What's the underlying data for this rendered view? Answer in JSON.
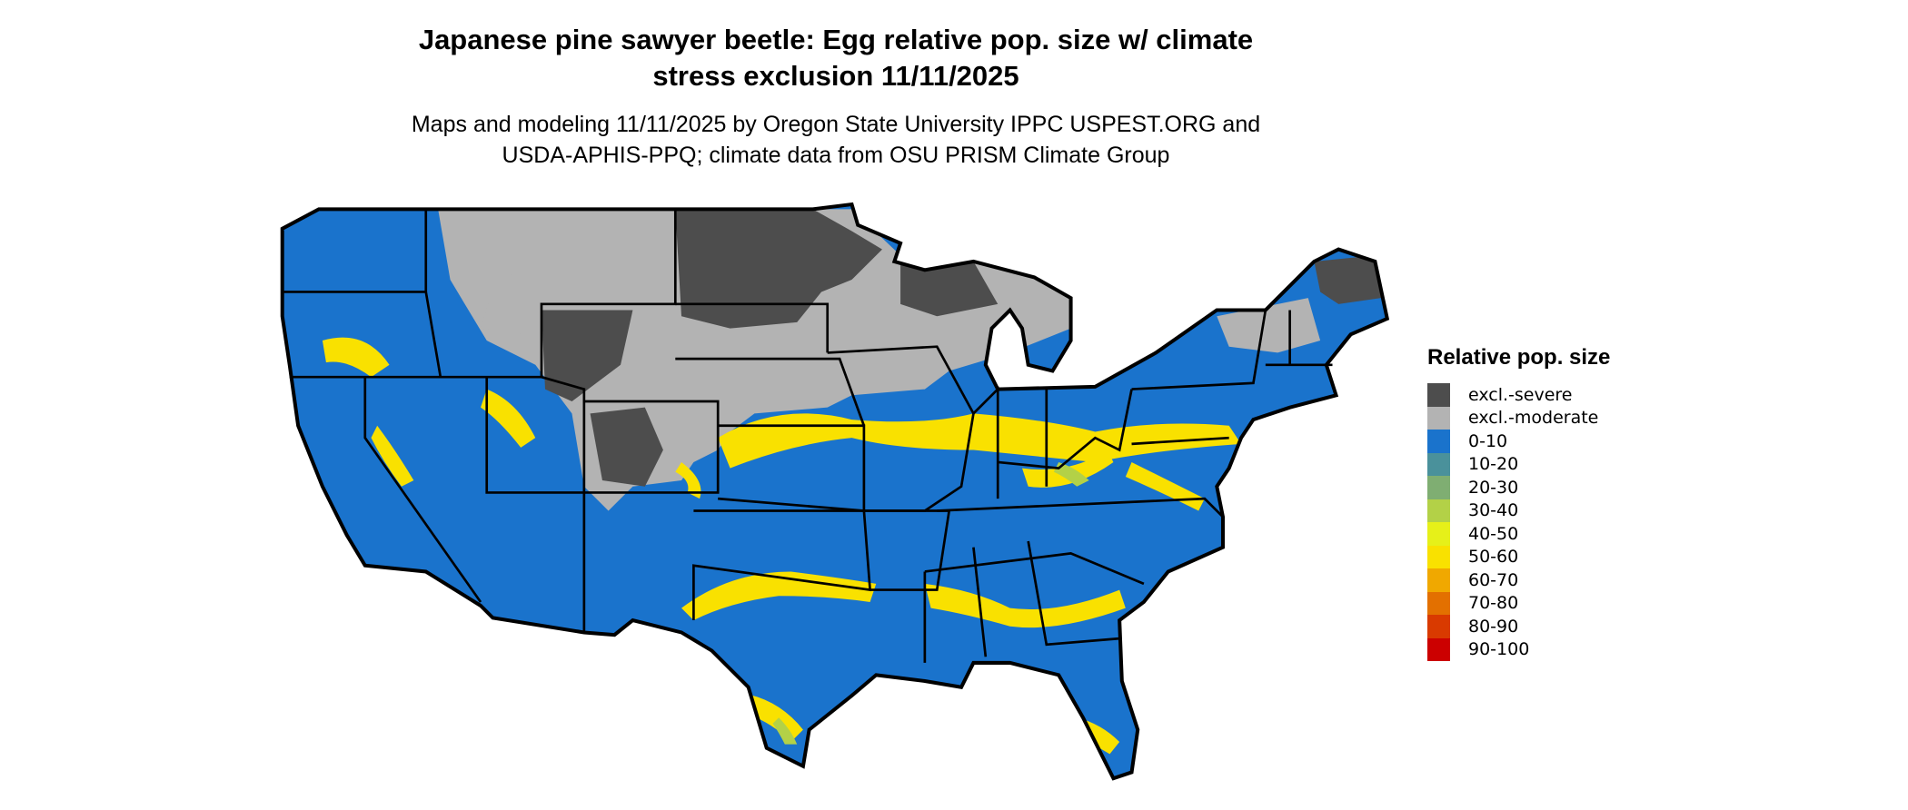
{
  "title": {
    "line1": "Japanese pine sawyer beetle: Egg relative pop. size w/ climate",
    "line2": "stress exclusion 11/11/2025"
  },
  "subtitle": {
    "line1": "Maps and modeling 11/11/2025 by Oregon State University IPPC USPEST.ORG and",
    "line2": "USDA-APHIS-PPQ; climate data from OSU PRISM Climate Group"
  },
  "legend": {
    "title": "Relative pop. size",
    "items": [
      {
        "label": "excl.-severe",
        "color": "#4d4d4d"
      },
      {
        "label": "excl.-moderate",
        "color": "#b3b3b3"
      },
      {
        "label": "0-10",
        "color": "#1a73cc"
      },
      {
        "label": "10-20",
        "color": "#4a919b"
      },
      {
        "label": "20-30",
        "color": "#7fae72"
      },
      {
        "label": "30-40",
        "color": "#b3d147"
      },
      {
        "label": "40-50",
        "color": "#e6f019"
      },
      {
        "label": "50-60",
        "color": "#f9e100"
      },
      {
        "label": "60-70",
        "color": "#f0a800"
      },
      {
        "label": "70-80",
        "color": "#e37000"
      },
      {
        "label": "80-90",
        "color": "#d93a00"
      },
      {
        "label": "90-100",
        "color": "#cc0000"
      }
    ]
  }
}
